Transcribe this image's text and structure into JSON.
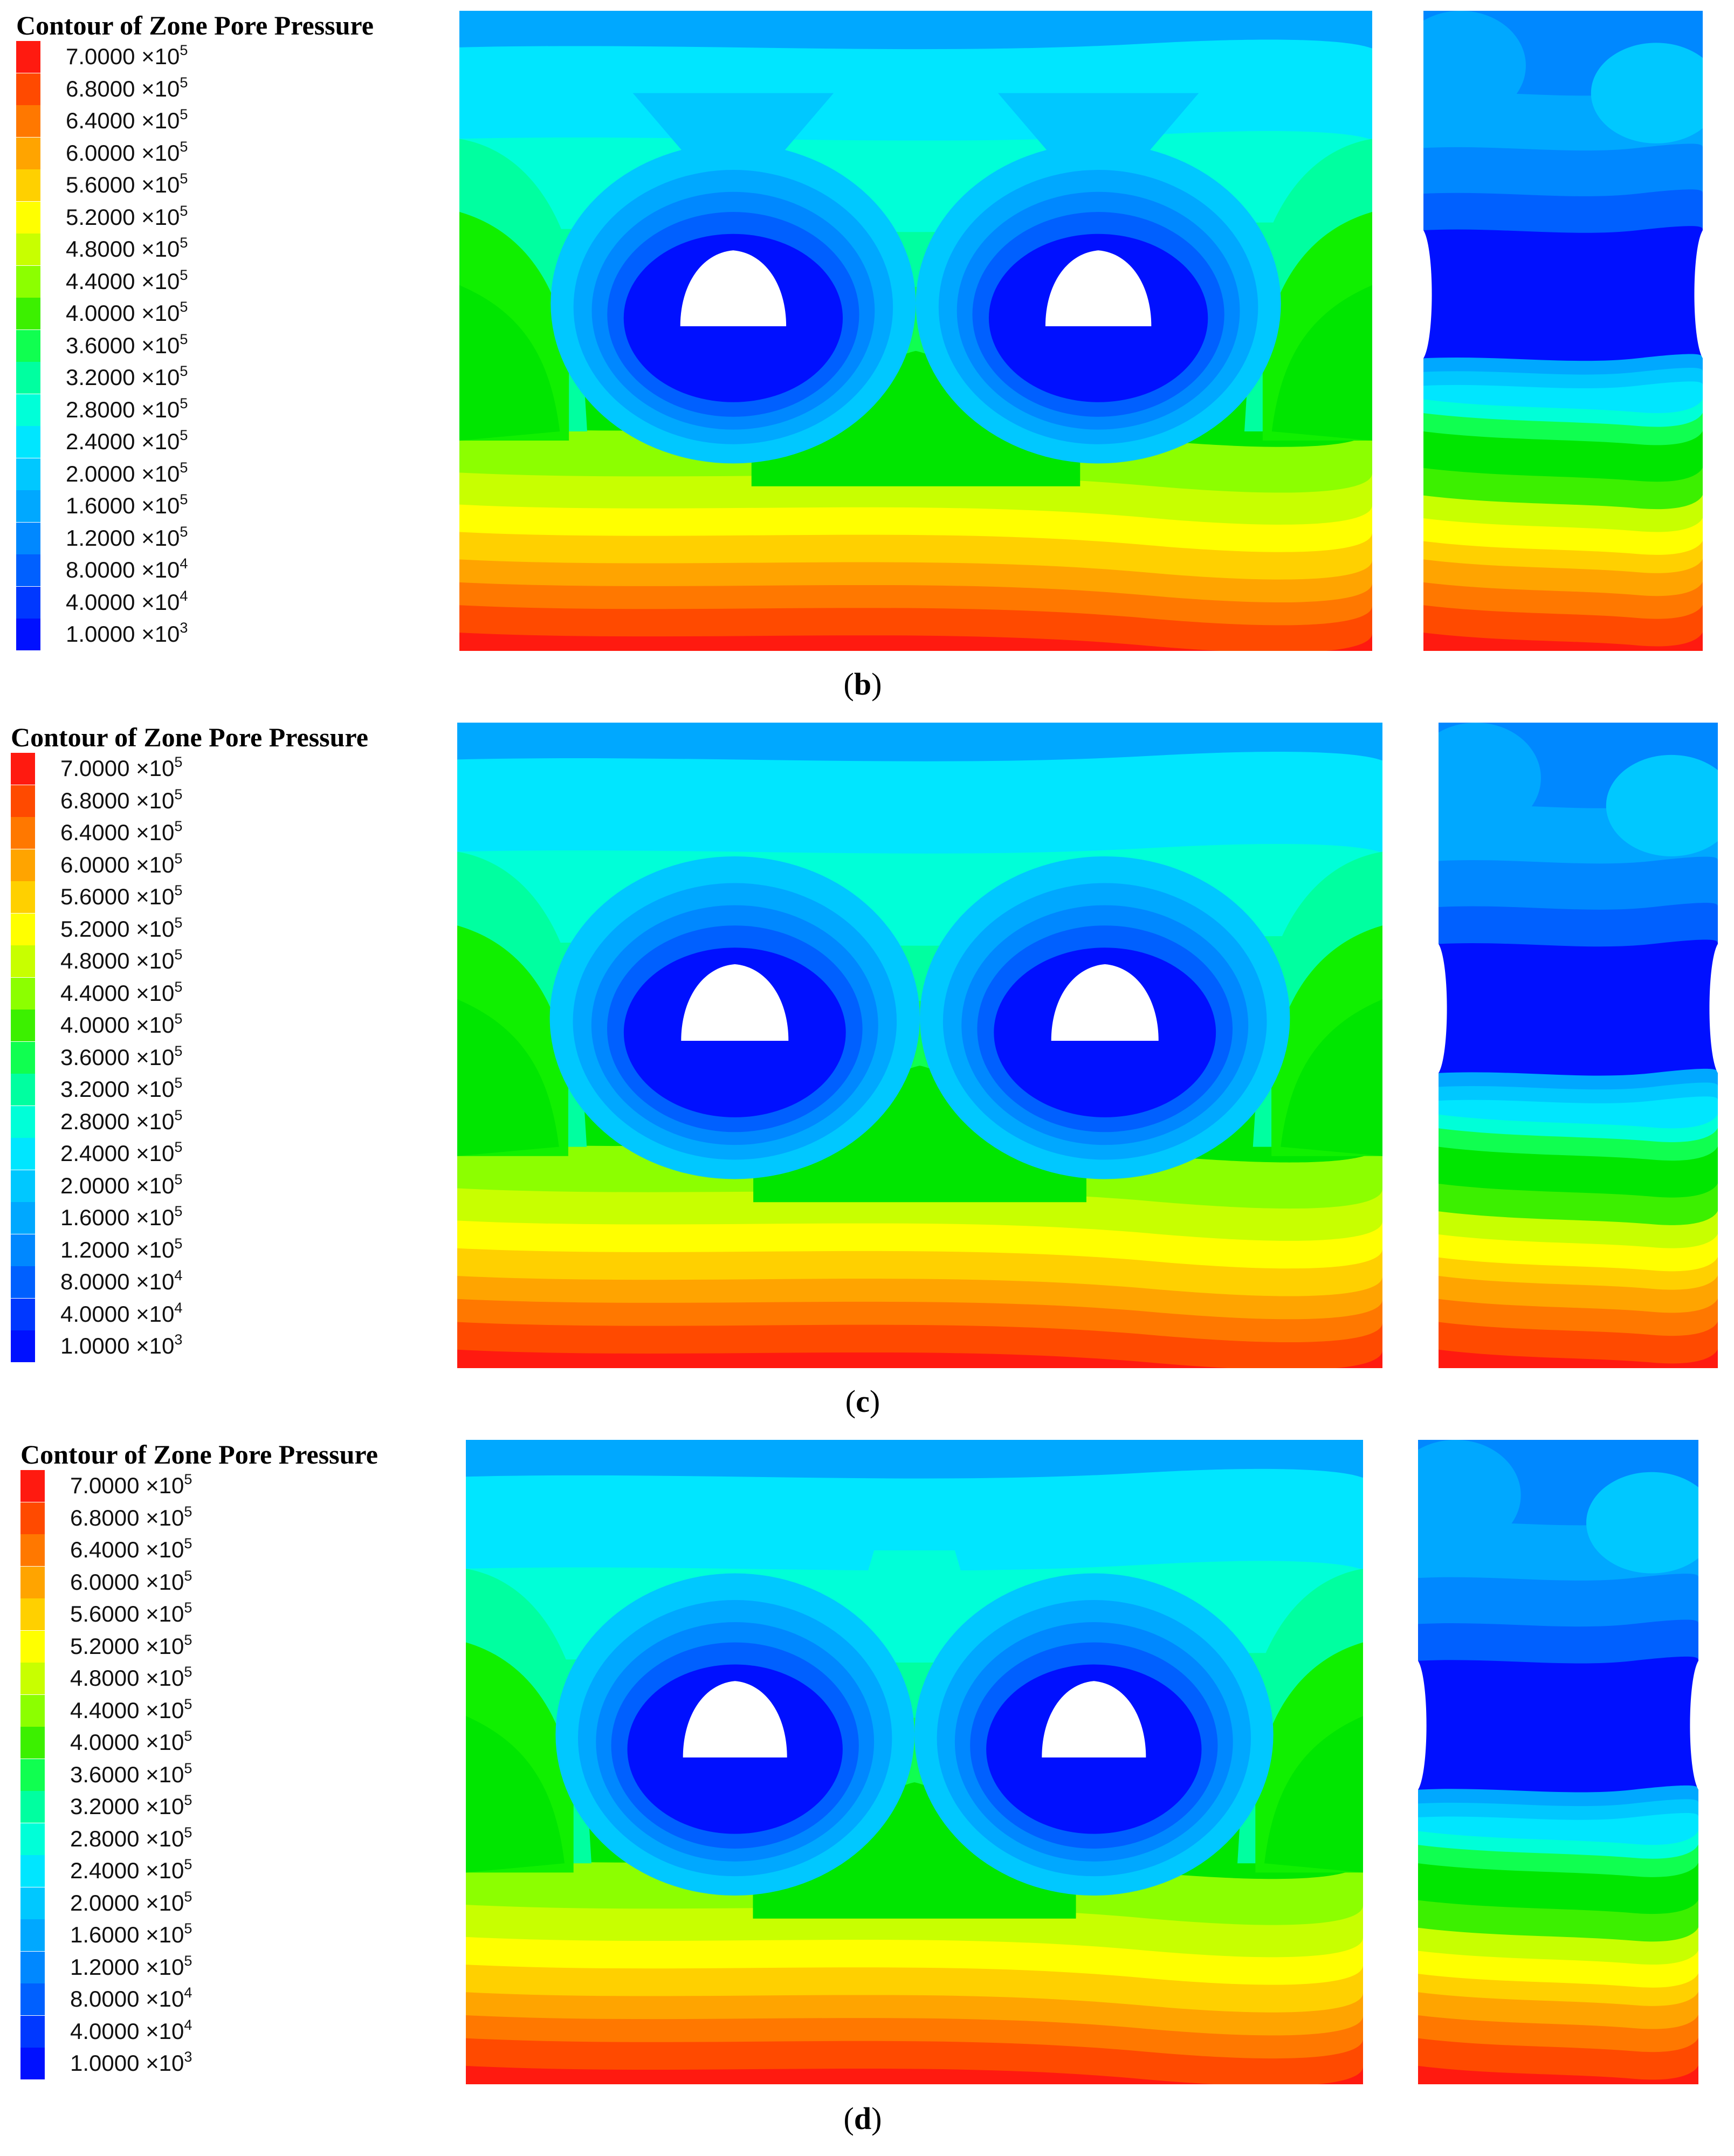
{
  "colors": {
    "levels": [
      "#ff1a10",
      "#ff4a00",
      "#ff7800",
      "#ffa400",
      "#ffd000",
      "#ffff00",
      "#c8ff00",
      "#8cff00",
      "#3cf000",
      "#00e600",
      "#10f000",
      "#10ff50",
      "#00ffa0",
      "#00ffd8",
      "#00e6ff",
      "#00c8ff",
      "#00a8ff",
      "#0088ff",
      "#0060ff",
      "#0038ff",
      "#0010ff"
    ],
    "cavity": "#ffffff"
  },
  "panels": [
    {
      "caption": "b",
      "legend_title": "Contour of Zone Pore Pressure",
      "legend": [
        {
          "mantissa": "7.0000",
          "exponent": "5"
        },
        {
          "mantissa": "6.8000",
          "exponent": "5"
        },
        {
          "mantissa": "6.4000",
          "exponent": "5"
        },
        {
          "mantissa": "6.0000",
          "exponent": "5"
        },
        {
          "mantissa": "5.6000",
          "exponent": "5"
        },
        {
          "mantissa": "5.2000",
          "exponent": "5"
        },
        {
          "mantissa": "4.8000",
          "exponent": "5"
        },
        {
          "mantissa": "4.4000",
          "exponent": "5"
        },
        {
          "mantissa": "4.0000",
          "exponent": "5"
        },
        {
          "mantissa": "3.6000",
          "exponent": "5"
        },
        {
          "mantissa": "3.2000",
          "exponent": "5"
        },
        {
          "mantissa": "2.8000",
          "exponent": "5"
        },
        {
          "mantissa": "2.4000",
          "exponent": "5"
        },
        {
          "mantissa": "2.0000",
          "exponent": "5"
        },
        {
          "mantissa": "1.6000",
          "exponent": "5"
        },
        {
          "mantissa": "1.2000",
          "exponent": "5"
        },
        {
          "mantissa": "8.0000",
          "exponent": "4"
        },
        {
          "mantissa": "4.0000",
          "exponent": "4"
        },
        {
          "mantissa": "1.0000",
          "exponent": "3"
        }
      ]
    },
    {
      "caption": "c",
      "legend_title": "Contour of Zone Pore Pressure",
      "legend": [
        {
          "mantissa": "7.0000",
          "exponent": "5"
        },
        {
          "mantissa": "6.8000",
          "exponent": "5"
        },
        {
          "mantissa": "6.4000",
          "exponent": "5"
        },
        {
          "mantissa": "6.0000",
          "exponent": "5"
        },
        {
          "mantissa": "5.6000",
          "exponent": "5"
        },
        {
          "mantissa": "5.2000",
          "exponent": "5"
        },
        {
          "mantissa": "4.8000",
          "exponent": "5"
        },
        {
          "mantissa": "4.4000",
          "exponent": "5"
        },
        {
          "mantissa": "4.0000",
          "exponent": "5"
        },
        {
          "mantissa": "3.6000",
          "exponent": "5"
        },
        {
          "mantissa": "3.2000",
          "exponent": "5"
        },
        {
          "mantissa": "2.8000",
          "exponent": "5"
        },
        {
          "mantissa": "2.4000",
          "exponent": "5"
        },
        {
          "mantissa": "2.0000",
          "exponent": "5"
        },
        {
          "mantissa": "1.6000",
          "exponent": "5"
        },
        {
          "mantissa": "1.2000",
          "exponent": "5"
        },
        {
          "mantissa": "8.0000",
          "exponent": "4"
        },
        {
          "mantissa": "4.0000",
          "exponent": "4"
        },
        {
          "mantissa": "1.0000",
          "exponent": "3"
        }
      ]
    },
    {
      "caption": "d",
      "legend_title": "Contour of Zone Pore Pressure",
      "legend": [
        {
          "mantissa": "7.0000",
          "exponent": "5"
        },
        {
          "mantissa": "6.8000",
          "exponent": "5"
        },
        {
          "mantissa": "6.4000",
          "exponent": "5"
        },
        {
          "mantissa": "6.0000",
          "exponent": "5"
        },
        {
          "mantissa": "5.6000",
          "exponent": "5"
        },
        {
          "mantissa": "5.2000",
          "exponent": "5"
        },
        {
          "mantissa": "4.8000",
          "exponent": "5"
        },
        {
          "mantissa": "4.4000",
          "exponent": "5"
        },
        {
          "mantissa": "4.0000",
          "exponent": "5"
        },
        {
          "mantissa": "3.6000",
          "exponent": "5"
        },
        {
          "mantissa": "3.2000",
          "exponent": "5"
        },
        {
          "mantissa": "2.8000",
          "exponent": "5"
        },
        {
          "mantissa": "2.4000",
          "exponent": "5"
        },
        {
          "mantissa": "2.0000",
          "exponent": "5"
        },
        {
          "mantissa": "1.6000",
          "exponent": "5"
        },
        {
          "mantissa": "1.2000",
          "exponent": "5"
        },
        {
          "mantissa": "8.0000",
          "exponent": "4"
        },
        {
          "mantissa": "4.0000",
          "exponent": "4"
        },
        {
          "mantissa": "1.0000",
          "exponent": "3"
        }
      ]
    }
  ]
}
